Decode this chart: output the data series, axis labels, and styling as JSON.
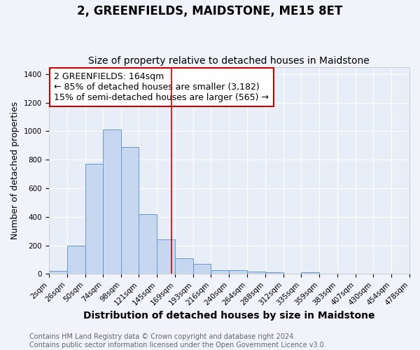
{
  "title": "2, GREENFIELDS, MAIDSTONE, ME15 8ET",
  "subtitle": "Size of property relative to detached houses in Maidstone",
  "xlabel": "Distribution of detached houses by size in Maidstone",
  "ylabel": "Number of detached properties",
  "bar_color": "#c5d8f0",
  "bar_edge_color": "#6699cc",
  "background_color": "#e8eef8",
  "grid_color": "#ffffff",
  "annotation_text": "2 GREENFIELDS: 164sqm\n← 85% of detached houses are smaller (3,182)\n15% of semi-detached houses are larger (565) →",
  "property_line_color": "#cc0000",
  "property_line_x": 164,
  "bin_edges": [
    2,
    26,
    50,
    74,
    98,
    121,
    145,
    169,
    193,
    216,
    240,
    264,
    288,
    312,
    335,
    359,
    383,
    407,
    430,
    454,
    478
  ],
  "bar_heights": [
    20,
    200,
    770,
    1010,
    890,
    420,
    240,
    110,
    70,
    25,
    25,
    18,
    10,
    0,
    10,
    0,
    0,
    0,
    0,
    0
  ],
  "yticks": [
    0,
    200,
    400,
    600,
    800,
    1000,
    1200,
    1400
  ],
  "ylim": [
    0,
    1450
  ],
  "footnote": "Contains HM Land Registry data © Crown copyright and database right 2024.\nContains public sector information licensed under the Open Government Licence v3.0.",
  "title_fontsize": 12,
  "subtitle_fontsize": 10,
  "xlabel_fontsize": 10,
  "ylabel_fontsize": 9,
  "tick_fontsize": 7.5,
  "annotation_fontsize": 9,
  "footnote_fontsize": 7
}
